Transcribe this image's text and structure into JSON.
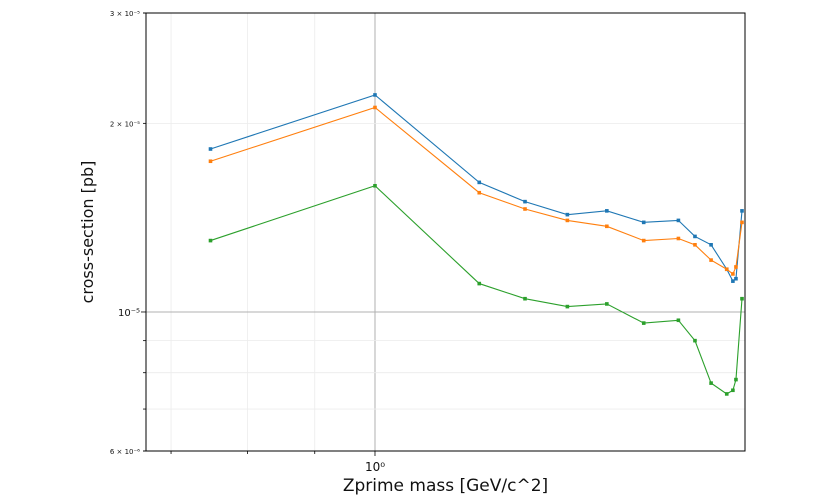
{
  "chart_data": {
    "type": "line",
    "xlabel": "Zprime mass [GeV/c^2]",
    "ylabel": "cross-section [pb]",
    "xscale": "log",
    "yscale": "log",
    "xlim": [
      0.67,
      1.91
    ],
    "ylim": [
      6e-06,
      3e-05
    ],
    "grid": true,
    "x_major_ticks": [
      {
        "value": 1.0,
        "label": "10⁰"
      }
    ],
    "y_major_ticks": [
      {
        "value": 1e-05,
        "label": "10⁻⁵"
      }
    ],
    "y_minor_ticks": [
      {
        "value": 6e-06,
        "label": "6 × 10⁻⁶"
      },
      {
        "value": 2e-05,
        "label": "2 × 10⁻⁵"
      },
      {
        "value": 3e-05,
        "label": "3 × 10⁻⁵"
      }
    ],
    "x": [
      0.75,
      1.0,
      1.2,
      1.3,
      1.4,
      1.5,
      1.6,
      1.7,
      1.75,
      1.8,
      1.85,
      1.87,
      1.88,
      1.9
    ],
    "series": [
      {
        "color": "#1f77b4",
        "values": [
          1.82e-05,
          2.22e-05,
          1.61e-05,
          1.5e-05,
          1.43e-05,
          1.45e-05,
          1.39e-05,
          1.4e-05,
          1.32e-05,
          1.28e-05,
          1.17e-05,
          1.12e-05,
          1.13e-05,
          1.45e-05
        ]
      },
      {
        "color": "#ff7f0e",
        "values": [
          1.74e-05,
          2.12e-05,
          1.55e-05,
          1.46e-05,
          1.4e-05,
          1.37e-05,
          1.3e-05,
          1.31e-05,
          1.28e-05,
          1.21e-05,
          1.17e-05,
          1.15e-05,
          1.18e-05,
          1.39e-05
        ]
      },
      {
        "color": "#2ca02c",
        "values": [
          1.3e-05,
          1.59e-05,
          1.11e-05,
          1.05e-05,
          1.02e-05,
          1.03e-05,
          9.6e-06,
          9.7e-06,
          9e-06,
          7.7e-06,
          7.4e-06,
          7.5e-06,
          7.8e-06,
          1.05e-05
        ]
      }
    ]
  }
}
